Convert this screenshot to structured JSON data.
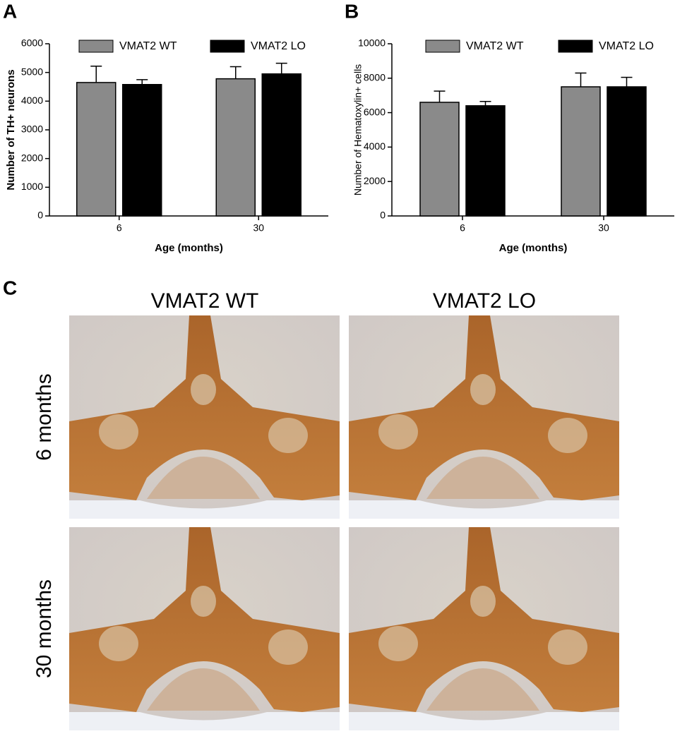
{
  "chart_data": [
    {
      "type": "bar",
      "panel_label": "A",
      "ylabel": "Number of TH+ neurons",
      "xlabel": "Age (months)",
      "categories": [
        "6",
        "30"
      ],
      "series": [
        {
          "name": "VMAT2 WT",
          "color": "#8a8a8a",
          "values": [
            4650,
            4780
          ],
          "errors": [
            570,
            420
          ]
        },
        {
          "name": "VMAT2 LO",
          "color": "#000000",
          "values": [
            4580,
            4950
          ],
          "errors": [
            170,
            370
          ]
        }
      ],
      "ylim": [
        0,
        6000
      ],
      "yticks": [
        0,
        1000,
        2000,
        3000,
        4000,
        5000,
        6000
      ]
    },
    {
      "type": "bar",
      "panel_label": "B",
      "ylabel": "Number of Hematoxylin+ cells",
      "xlabel": "Age (months)",
      "categories": [
        "6",
        "30"
      ],
      "series": [
        {
          "name": "VMAT2 WT",
          "color": "#8a8a8a",
          "values": [
            6600,
            7500
          ],
          "errors": [
            650,
            800
          ]
        },
        {
          "name": "VMAT2 LO",
          "color": "#000000",
          "values": [
            6400,
            7500
          ],
          "errors": [
            250,
            550
          ]
        }
      ],
      "ylim": [
        0,
        10000
      ],
      "yticks": [
        0,
        2000,
        4000,
        6000,
        8000,
        10000
      ]
    }
  ],
  "panel_c": {
    "label": "C",
    "columns": [
      "VMAT2 WT",
      "VMAT2 LO"
    ],
    "rows": [
      "6 months",
      "30 months"
    ]
  }
}
